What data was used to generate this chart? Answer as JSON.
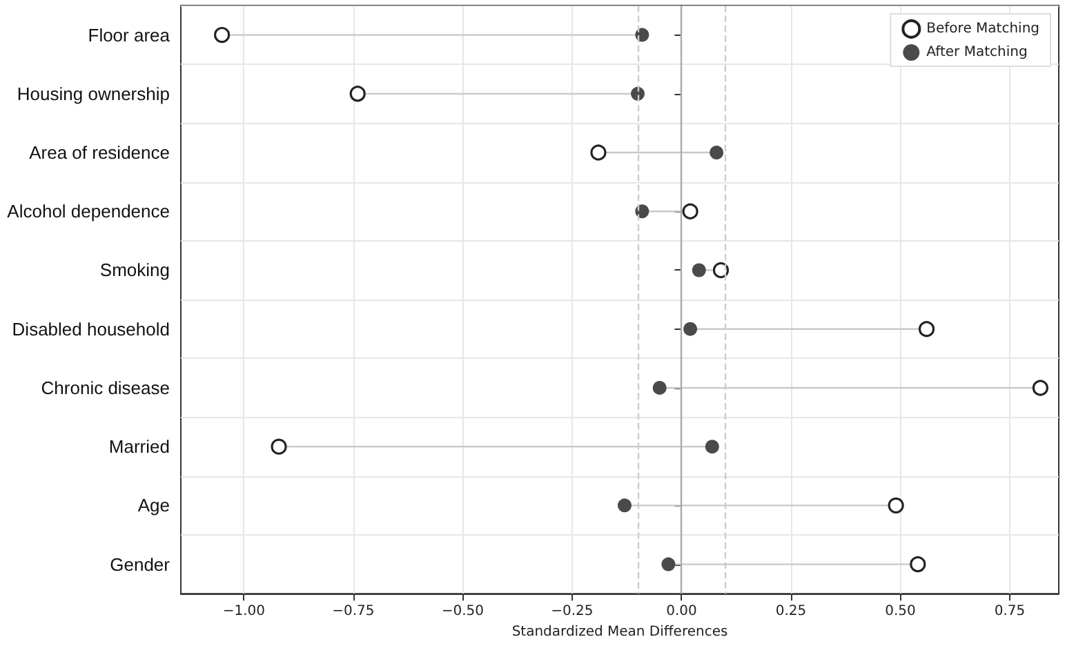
{
  "chart_data": {
    "type": "scatter",
    "orientation": "horizontal",
    "xlabel": "Standardized Mean Differences",
    "categories": [
      "Floor area",
      "Housing ownership",
      "Area of residence",
      "Alcohol dependence",
      "Smoking",
      "Disabled household",
      "Chronic disease",
      "Married",
      "Age",
      "Gender"
    ],
    "series": [
      {
        "name": "Before Matching",
        "color": "#ffffff",
        "values": [
          -1.05,
          -0.74,
          -0.19,
          0.02,
          0.09,
          0.56,
          0.82,
          -0.92,
          0.49,
          0.54
        ]
      },
      {
        "name": "After Matching",
        "color": "#4a4a4a",
        "values": [
          -0.09,
          -0.1,
          0.08,
          -0.09,
          0.04,
          0.02,
          -0.05,
          0.07,
          -0.13,
          -0.03
        ]
      }
    ],
    "xlim": [
      -1.144,
      0.862
    ],
    "xticks": [
      {
        "value": -1,
        "label": "−1.00"
      },
      {
        "value": -0.75,
        "label": "−0.75"
      },
      {
        "value": -0.5,
        "label": "−0.50"
      },
      {
        "value": -0.25,
        "label": "−0.25"
      },
      {
        "value": 0,
        "label": "0.00"
      },
      {
        "value": 0.25,
        "label": "0.25"
      },
      {
        "value": 0.5,
        "label": "0.50"
      },
      {
        "value": 0.75,
        "label": "0.75"
      }
    ],
    "ref_lines": [
      {
        "axis": "x",
        "value": 0,
        "color": "#aaaaaa",
        "line_style": "solid"
      },
      {
        "axis": "x",
        "value": -0.1,
        "color": "#cccccc",
        "line_style": "dashed"
      },
      {
        "axis": "x",
        "value": 0.1,
        "color": "#cccccc",
        "line_style": "dashed"
      }
    ],
    "grid": true,
    "legend": "top right",
    "marker": "circle"
  }
}
